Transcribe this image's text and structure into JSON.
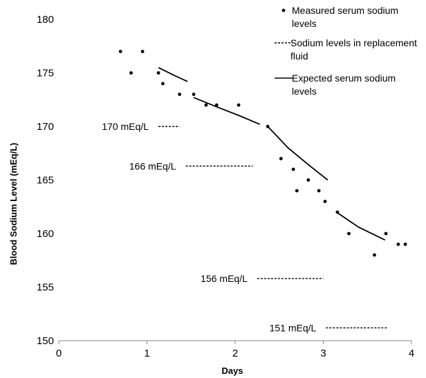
{
  "chart_data": {
    "type": "scatter",
    "xlabel": "Days",
    "ylabel": "Blood Sodium Level (mEq/L)",
    "xlim": [
      0,
      4
    ],
    "ylim": [
      150,
      180
    ],
    "xticks": [
      0,
      1,
      2,
      3,
      4
    ],
    "yticks": [
      150,
      155,
      160,
      165,
      170,
      175,
      180
    ],
    "grid": false,
    "legend_position": "top-right",
    "legend": [
      {
        "marker": "dot",
        "label": "Measured serum sodium levels"
      },
      {
        "marker": "dashed",
        "label": "Sodium levels in replacement fluid"
      },
      {
        "marker": "solid",
        "label": "Expected serum sodium levels"
      }
    ],
    "series": [
      {
        "name": "Measured serum sodium levels",
        "style": "dots",
        "points": [
          [
            0.7,
            177
          ],
          [
            0.82,
            175
          ],
          [
            0.95,
            177
          ],
          [
            1.13,
            175
          ],
          [
            1.18,
            174
          ],
          [
            1.37,
            173
          ],
          [
            1.53,
            173
          ],
          [
            1.67,
            172
          ],
          [
            1.79,
            172
          ],
          [
            2.04,
            172
          ],
          [
            2.37,
            170
          ],
          [
            2.52,
            167
          ],
          [
            2.66,
            166
          ],
          [
            2.7,
            164
          ],
          [
            2.83,
            165
          ],
          [
            2.95,
            164
          ],
          [
            3.02,
            163
          ],
          [
            3.16,
            162
          ],
          [
            3.29,
            160
          ],
          [
            3.58,
            158
          ],
          [
            3.71,
            160
          ],
          [
            3.85,
            159
          ],
          [
            3.93,
            159
          ]
        ]
      },
      {
        "name": "Sodium levels in replacement fluid",
        "style": "dashed",
        "segments": [
          {
            "label": "170 mEq/L",
            "x": [
              1.13,
              1.37
            ],
            "y": 170
          },
          {
            "label": "166 mEq/L",
            "x": [
              1.44,
              2.2
            ],
            "y": 166.3
          },
          {
            "label": "156 mEq/L",
            "x": [
              2.25,
              3.0
            ],
            "y": 155.8
          },
          {
            "label": "151 mEq/L",
            "x": [
              3.03,
              3.73
            ],
            "y": 151.2
          }
        ]
      },
      {
        "name": "Expected serum sodium levels",
        "style": "solid",
        "segments": [
          [
            [
              1.13,
              175.5
            ],
            [
              1.3,
              174.8
            ],
            [
              1.46,
              174.2
            ]
          ],
          [
            [
              1.53,
              172.7
            ],
            [
              1.8,
              171.8
            ],
            [
              2.05,
              171.0
            ],
            [
              2.28,
              170.2
            ]
          ],
          [
            [
              2.37,
              170.0
            ],
            [
              2.6,
              168.0
            ],
            [
              2.85,
              166.3
            ],
            [
              3.05,
              165.0
            ]
          ],
          [
            [
              3.15,
              162.0
            ],
            [
              3.4,
              160.6
            ],
            [
              3.7,
              159.4
            ]
          ]
        ]
      }
    ]
  }
}
